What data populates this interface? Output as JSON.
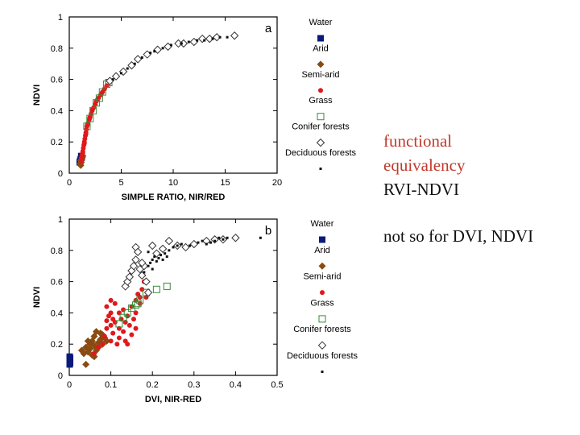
{
  "colors": {
    "water": "#0a1a7a",
    "arid": "#8a4b12",
    "semi_arid": "#e0181c",
    "grass": "#3a8a3a",
    "conifer": "#333333",
    "deciduous": "#111111"
  },
  "legend": [
    {
      "key": "water",
      "label": "Water",
      "marker": "square-filled"
    },
    {
      "key": "arid",
      "label": "Arid",
      "marker": "diamond-filled"
    },
    {
      "key": "semi_arid",
      "label": "Semi-arid",
      "marker": "circle-filled"
    },
    {
      "key": "grass",
      "label": "Grass",
      "marker": "square-open"
    },
    {
      "key": "conifer",
      "label": "Conifer forests",
      "marker": "diamond-open"
    },
    {
      "key": "deciduous",
      "label": "Deciduous forests",
      "marker": "dot-small"
    }
  ],
  "notes": {
    "red_lines": [
      "functional",
      "equivalency"
    ],
    "line3": "RVI-NDVI",
    "line4": "not so for DVI, NDVI"
  },
  "chart_data": [
    {
      "type": "scatter",
      "panel_label": "a",
      "xlabel": "SIMPLE RATIO, NIR/RED",
      "ylabel": "NDVI",
      "xlim": [
        0,
        20
      ],
      "ylim": [
        0,
        1
      ],
      "xticks": [
        0,
        5,
        10,
        15,
        20
      ],
      "yticks": [
        0,
        0.2,
        0.4,
        0.6,
        0.8,
        1
      ],
      "ytick_labels": [
        "0",
        "0.2",
        "0.4",
        "0.6",
        "0.8",
        "1"
      ],
      "series": [
        {
          "name": "Water",
          "key": "water",
          "points": [
            [
              1.0,
              0.07
            ],
            [
              1.1,
              0.09
            ],
            [
              1.15,
              0.11
            ],
            [
              1.2,
              0.1
            ],
            [
              1.05,
              0.08
            ]
          ]
        },
        {
          "name": "Arid",
          "key": "arid",
          "points": [
            [
              1.05,
              0.06
            ],
            [
              1.1,
              0.08
            ],
            [
              1.15,
              0.07
            ],
            [
              1.2,
              0.09
            ],
            [
              1.3,
              0.11
            ],
            [
              1.25,
              0.1
            ],
            [
              1.1,
              0.05
            ]
          ]
        },
        {
          "name": "Semi-arid",
          "key": "semi_arid",
          "points": [
            [
              1.15,
              0.08
            ],
            [
              1.2,
              0.1
            ],
            [
              1.25,
              0.12
            ],
            [
              1.3,
              0.14
            ],
            [
              1.35,
              0.16
            ],
            [
              1.4,
              0.18
            ],
            [
              1.45,
              0.2
            ],
            [
              1.5,
              0.22
            ],
            [
              1.55,
              0.24
            ],
            [
              1.6,
              0.26
            ],
            [
              1.65,
              0.28
            ],
            [
              1.7,
              0.3
            ],
            [
              1.8,
              0.32
            ],
            [
              1.9,
              0.34
            ],
            [
              2.0,
              0.36
            ],
            [
              2.1,
              0.38
            ],
            [
              2.2,
              0.4
            ],
            [
              2.35,
              0.42
            ],
            [
              2.5,
              0.44
            ],
            [
              2.6,
              0.46
            ],
            [
              2.8,
              0.48
            ],
            [
              3.0,
              0.5
            ],
            [
              3.2,
              0.52
            ],
            [
              3.4,
              0.54
            ],
            [
              3.6,
              0.56
            ],
            [
              1.3,
              0.13
            ],
            [
              1.45,
              0.19
            ],
            [
              1.6,
              0.25
            ],
            [
              1.75,
              0.31
            ],
            [
              1.95,
              0.35
            ],
            [
              2.25,
              0.41
            ],
            [
              2.7,
              0.47
            ],
            [
              3.1,
              0.51
            ]
          ]
        },
        {
          "name": "Grass",
          "key": "grass",
          "points": [
            [
              1.7,
              0.3
            ],
            [
              2.0,
              0.35
            ],
            [
              2.3,
              0.4
            ],
            [
              2.6,
              0.45
            ],
            [
              2.9,
              0.48
            ],
            [
              3.2,
              0.52
            ],
            [
              3.6,
              0.57
            ],
            [
              3.8,
              0.58
            ]
          ]
        },
        {
          "name": "Conifer forests",
          "key": "conifer",
          "points": [
            [
              3.9,
              0.59
            ],
            [
              4.5,
              0.62
            ],
            [
              5.2,
              0.65
            ],
            [
              6.0,
              0.69
            ],
            [
              6.6,
              0.73
            ],
            [
              7.5,
              0.76
            ],
            [
              8.5,
              0.79
            ],
            [
              9.5,
              0.81
            ],
            [
              10.5,
              0.83
            ],
            [
              11.0,
              0.83
            ],
            [
              12.0,
              0.84
            ],
            [
              12.8,
              0.86
            ],
            [
              13.5,
              0.86
            ],
            [
              14.2,
              0.87
            ],
            [
              15.9,
              0.88
            ]
          ]
        },
        {
          "name": "Deciduous forests",
          "key": "deciduous",
          "points": [
            [
              4.2,
              0.6
            ],
            [
              5.0,
              0.64
            ],
            [
              5.6,
              0.67
            ],
            [
              6.3,
              0.7
            ],
            [
              7.0,
              0.74
            ],
            [
              7.8,
              0.77
            ],
            [
              8.2,
              0.78
            ],
            [
              9.0,
              0.8
            ],
            [
              9.8,
              0.82
            ],
            [
              10.8,
              0.83
            ],
            [
              11.5,
              0.84
            ],
            [
              12.3,
              0.85
            ],
            [
              13.0,
              0.85
            ],
            [
              13.8,
              0.86
            ],
            [
              14.5,
              0.87
            ],
            [
              15.2,
              0.87
            ]
          ]
        }
      ]
    },
    {
      "type": "scatter",
      "panel_label": "b",
      "xlabel": "DVI, NIR-RED",
      "ylabel": "NDVI",
      "xlim": [
        0,
        0.5
      ],
      "ylim": [
        0,
        1
      ],
      "xticks": [
        0,
        0.1,
        0.2,
        0.3,
        0.4,
        0.5
      ],
      "yticks": [
        0,
        0.2,
        0.4,
        0.6,
        0.8,
        1
      ],
      "ytick_labels": [
        "0",
        "0.2",
        "0.4",
        "0.6",
        "0.8",
        "1"
      ],
      "series": [
        {
          "name": "Water",
          "key": "water",
          "points": [
            [
              0.001,
              0.07
            ],
            [
              0.001,
              0.09
            ],
            [
              0.002,
              0.11
            ],
            [
              0.001,
              0.12
            ],
            [
              0.002,
              0.08
            ]
          ]
        },
        {
          "name": "Arid",
          "key": "arid",
          "points": [
            [
              0.03,
              0.16
            ],
            [
              0.035,
              0.14
            ],
            [
              0.04,
              0.18
            ],
            [
              0.04,
              0.07
            ],
            [
              0.045,
              0.15
            ],
            [
              0.05,
              0.2
            ],
            [
              0.05,
              0.17
            ],
            [
              0.055,
              0.22
            ],
            [
              0.055,
              0.13
            ],
            [
              0.06,
              0.19
            ],
            [
              0.06,
              0.25
            ],
            [
              0.065,
              0.16
            ],
            [
              0.065,
              0.28
            ],
            [
              0.07,
              0.21
            ],
            [
              0.07,
              0.18
            ],
            [
              0.075,
              0.23
            ],
            [
              0.08,
              0.26
            ],
            [
              0.08,
              0.2
            ],
            [
              0.085,
              0.24
            ],
            [
              0.09,
              0.22
            ],
            [
              0.06,
              0.12
            ],
            [
              0.045,
              0.22
            ],
            [
              0.075,
              0.27
            ]
          ]
        },
        {
          "name": "Semi-arid",
          "key": "semi_arid",
          "points": [
            [
              0.06,
              0.14
            ],
            [
              0.07,
              0.18
            ],
            [
              0.08,
              0.2
            ],
            [
              0.085,
              0.25
            ],
            [
              0.09,
              0.3
            ],
            [
              0.09,
              0.44
            ],
            [
              0.095,
              0.38
            ],
            [
              0.1,
              0.4
            ],
            [
              0.1,
              0.32
            ],
            [
              0.1,
              0.22
            ],
            [
              0.105,
              0.27
            ],
            [
              0.11,
              0.34
            ],
            [
              0.11,
              0.46
            ],
            [
              0.115,
              0.2
            ],
            [
              0.12,
              0.3
            ],
            [
              0.12,
              0.24
            ],
            [
              0.125,
              0.36
            ],
            [
              0.13,
              0.28
            ],
            [
              0.13,
              0.42
            ],
            [
              0.135,
              0.22
            ],
            [
              0.14,
              0.38
            ],
            [
              0.14,
              0.2
            ],
            [
              0.145,
              0.32
            ],
            [
              0.15,
              0.44
            ],
            [
              0.15,
              0.26
            ],
            [
              0.155,
              0.36
            ],
            [
              0.16,
              0.48
            ],
            [
              0.16,
              0.3
            ],
            [
              0.165,
              0.52
            ],
            [
              0.17,
              0.46
            ],
            [
              0.175,
              0.55
            ],
            [
              0.18,
              0.6
            ],
            [
              0.185,
              0.5
            ],
            [
              0.1,
              0.48
            ],
            [
              0.09,
              0.35
            ],
            [
              0.12,
              0.4
            ],
            [
              0.135,
              0.34
            ],
            [
              0.16,
              0.4
            ],
            [
              0.17,
              0.5
            ],
            [
              0.105,
              0.36
            ]
          ]
        },
        {
          "name": "Grass",
          "key": "grass",
          "points": [
            [
              0.12,
              0.33
            ],
            [
              0.13,
              0.37
            ],
            [
              0.14,
              0.4
            ],
            [
              0.15,
              0.43
            ],
            [
              0.16,
              0.45
            ],
            [
              0.17,
              0.48
            ],
            [
              0.185,
              0.53
            ],
            [
              0.21,
              0.55
            ],
            [
              0.235,
              0.57
            ],
            [
              0.165,
              0.46
            ]
          ]
        },
        {
          "name": "Conifer forests",
          "key": "conifer",
          "points": [
            [
              0.135,
              0.57
            ],
            [
              0.14,
              0.6
            ],
            [
              0.145,
              0.63
            ],
            [
              0.15,
              0.67
            ],
            [
              0.155,
              0.7
            ],
            [
              0.16,
              0.74
            ],
            [
              0.16,
              0.82
            ],
            [
              0.165,
              0.79
            ],
            [
              0.17,
              0.68
            ],
            [
              0.175,
              0.64
            ],
            [
              0.18,
              0.7
            ],
            [
              0.185,
              0.6
            ],
            [
              0.19,
              0.53
            ],
            [
              0.2,
              0.83
            ],
            [
              0.21,
              0.78
            ],
            [
              0.225,
              0.81
            ],
            [
              0.24,
              0.86
            ],
            [
              0.26,
              0.83
            ],
            [
              0.28,
              0.82
            ],
            [
              0.3,
              0.84
            ],
            [
              0.33,
              0.86
            ],
            [
              0.35,
              0.87
            ],
            [
              0.37,
              0.87
            ],
            [
              0.4,
              0.88
            ],
            [
              0.175,
              0.72
            ]
          ]
        },
        {
          "name": "Deciduous forests",
          "key": "deciduous",
          "points": [
            [
              0.18,
              0.66
            ],
            [
              0.19,
              0.7
            ],
            [
              0.195,
              0.72
            ],
            [
              0.2,
              0.74
            ],
            [
              0.205,
              0.76
            ],
            [
              0.21,
              0.73
            ],
            [
              0.215,
              0.75
            ],
            [
              0.22,
              0.77
            ],
            [
              0.225,
              0.74
            ],
            [
              0.23,
              0.78
            ],
            [
              0.235,
              0.76
            ],
            [
              0.24,
              0.8
            ],
            [
              0.25,
              0.82
            ],
            [
              0.26,
              0.83
            ],
            [
              0.27,
              0.84
            ],
            [
              0.29,
              0.83
            ],
            [
              0.31,
              0.85
            ],
            [
              0.32,
              0.86
            ],
            [
              0.34,
              0.85
            ],
            [
              0.35,
              0.86
            ],
            [
              0.36,
              0.88
            ],
            [
              0.37,
              0.87
            ],
            [
              0.38,
              0.88
            ],
            [
              0.46,
              0.88
            ],
            [
              0.2,
              0.68
            ],
            [
              0.19,
              0.79
            ],
            [
              0.33,
              0.84
            ]
          ]
        }
      ]
    }
  ]
}
